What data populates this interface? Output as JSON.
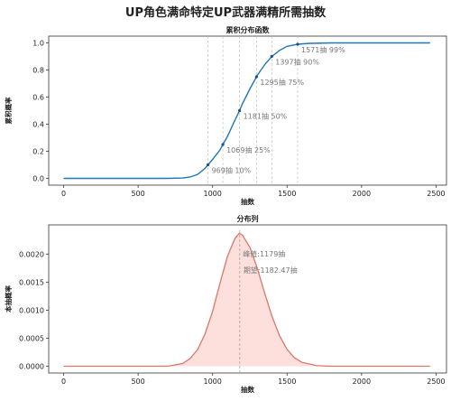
{
  "figure": {
    "title": "UP角色满命特定UP武器满精所需抽数"
  },
  "chart_data": [
    {
      "type": "line",
      "title": "累积分布函数",
      "xlabel": "抽数",
      "ylabel": "累积概率",
      "xlim": [
        -100,
        2570
      ],
      "ylim": [
        -0.05,
        1.05
      ],
      "xticks": [
        0,
        500,
        1000,
        1500,
        2000,
        2500
      ],
      "yticks": [
        0.0,
        0.2,
        0.4,
        0.6,
        0.8,
        1.0
      ],
      "ytick_labels": [
        "0.0",
        "0.2",
        "0.4",
        "0.6",
        "0.8",
        "1.0"
      ],
      "grid": false,
      "series": [
        {
          "color": "#1f77b4",
          "x": [
            0,
            700,
            800,
            850,
            900,
            950,
            969,
            1000,
            1050,
            1069,
            1100,
            1150,
            1181,
            1200,
            1250,
            1295,
            1300,
            1350,
            1397,
            1450,
            1500,
            1571,
            1650,
            1800,
            2000,
            2460
          ],
          "y": [
            0.0,
            0.0,
            0.003,
            0.01,
            0.03,
            0.075,
            0.1,
            0.14,
            0.21,
            0.25,
            0.31,
            0.43,
            0.5,
            0.55,
            0.66,
            0.75,
            0.76,
            0.84,
            0.9,
            0.945,
            0.975,
            0.99,
            0.997,
            1.0,
            1.0,
            1.0
          ]
        }
      ],
      "annotations": [
        {
          "x": 969,
          "y": 0.1,
          "text": "969抽  10%"
        },
        {
          "x": 1069,
          "y": 0.25,
          "text": "1069抽  25%"
        },
        {
          "x": 1181,
          "y": 0.5,
          "text": "1181抽  50%"
        },
        {
          "x": 1295,
          "y": 0.75,
          "text": "1295抽  75%"
        },
        {
          "x": 1397,
          "y": 0.9,
          "text": "1397抽  90%"
        },
        {
          "x": 1571,
          "y": 0.99,
          "text": "1571抽  99%"
        }
      ]
    },
    {
      "type": "area",
      "title": "分布列",
      "xlabel": "抽数",
      "ylabel": "本抽概率",
      "xlim": [
        -100,
        2570
      ],
      "ylim": [
        -0.00012,
        0.00252
      ],
      "xticks": [
        0,
        500,
        1000,
        1500,
        2000,
        2500
      ],
      "yticks": [
        0.0,
        0.0005,
        0.001,
        0.0015,
        0.002
      ],
      "ytick_labels": [
        "0.0000",
        "0.0005",
        "0.0010",
        "0.0015",
        "0.0020"
      ],
      "grid": false,
      "series": [
        {
          "color": "#d9776a",
          "fill": "#fde0dc",
          "x": [
            0,
            700,
            800,
            850,
            900,
            950,
            1000,
            1050,
            1100,
            1150,
            1179,
            1200,
            1250,
            1300,
            1350,
            1400,
            1450,
            1500,
            1550,
            1600,
            1700,
            1800,
            2000,
            2460
          ],
          "y": [
            0.0,
            0.0,
            5e-05,
            0.00014,
            0.0003,
            0.00058,
            0.00098,
            0.00148,
            0.00196,
            0.00228,
            0.00237,
            0.00234,
            0.00212,
            0.00175,
            0.0013,
            0.00088,
            0.00054,
            0.0003,
            0.00015,
            7e-05,
            1e-05,
            0.0,
            0.0,
            0.0
          ]
        }
      ],
      "peak": {
        "x": 1179,
        "text": "峰值:1179抽"
      },
      "mean": {
        "x": 1182.47,
        "text": "期望:1182.47抽"
      }
    }
  ]
}
